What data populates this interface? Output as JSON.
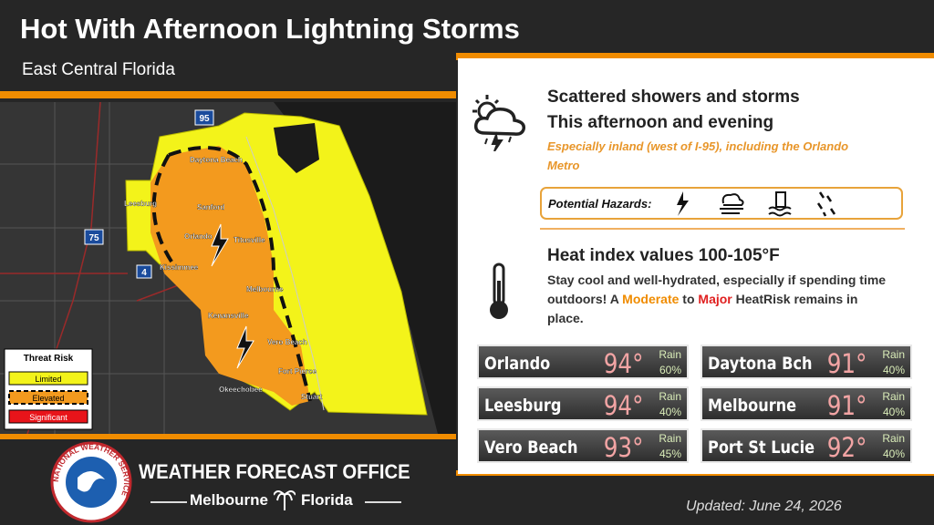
{
  "header": {
    "title": "Hot With Afternoon Lightning Storms",
    "subtitle": "East Central Florida"
  },
  "map": {
    "cities": [
      "Daytona Beach",
      "Leesburg",
      "Sanford",
      "Orlando",
      "Titusville",
      "Kissimmee",
      "Melbourne",
      "Kenansville",
      "Vero Beach",
      "Fort Pierce",
      "Okeechobee",
      "Stuart"
    ],
    "highways": [
      "95",
      "75",
      "4"
    ],
    "legend": {
      "title": "Threat Risk",
      "levels": [
        "Limited",
        "Elevated",
        "Significant"
      ]
    }
  },
  "storms": {
    "headline": "Scattered showers and storms",
    "timing": "This afternoon and evening",
    "note": "Especially inland (west of I-95), including the Orlando Metro",
    "hazards_label": "Potential Hazards:"
  },
  "heat": {
    "headline": "Heat index values 100-105°F",
    "text": [
      "Stay cool and well-hydrated, especially if spending time outdoors! A ",
      "Moderate",
      " to ",
      "Major",
      " HeatRisk remains in place."
    ]
  },
  "cities": {
    "rain_label": "Rain",
    "rows": [
      {
        "name": "Orlando",
        "temp": "94°",
        "rain": "60%"
      },
      {
        "name": "Daytona Bch",
        "temp": "91°",
        "rain": "40%"
      },
      {
        "name": "Leesburg",
        "temp": "94°",
        "rain": "40%"
      },
      {
        "name": "Melbourne",
        "temp": "91°",
        "rain": "40%"
      },
      {
        "name": "Vero Beach",
        "temp": "93°",
        "rain": "45%"
      },
      {
        "name": "Port St Lucie",
        "temp": "92°",
        "rain": "40%"
      }
    ]
  },
  "footer": {
    "seal": "NATIONAL WEATHER SERVICE",
    "office": "WEATHER FORECAST OFFICE",
    "location": [
      "Melbourne",
      "Florida"
    ],
    "updated": "Updated: June 24, 2026"
  }
}
